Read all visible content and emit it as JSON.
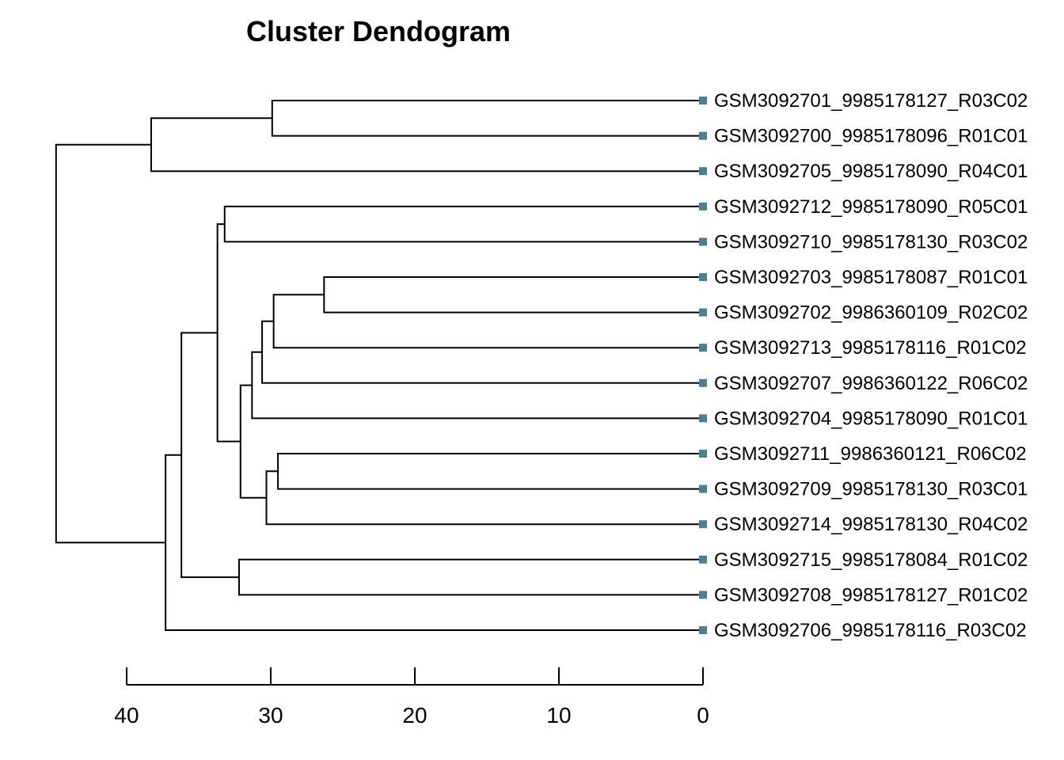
{
  "chart_data": {
    "type": "dendrogram",
    "title": "Cluster Dendogram",
    "xlim": [
      40,
      0
    ],
    "ticks": [
      40,
      30,
      20,
      10,
      0
    ],
    "leaves": [
      "GSM3092701_9985178127_R03C02",
      "GSM3092700_9985178096_R01C01",
      "GSM3092705_9985178090_R04C01",
      "GSM3092712_9985178090_R05C01",
      "GSM3092710_9985178130_R03C02",
      "GSM3092703_9985178087_R01C01",
      "GSM3092702_9986360109_R02C02",
      "GSM3092713_9985178116_R01C02",
      "GSM3092707_9986360122_R06C02",
      "GSM3092704_9985178090_R01C01",
      "GSM3092711_9986360121_R06C02",
      "GSM3092709_9985178130_R03C01",
      "GSM3092714_9985178130_R04C02",
      "GSM3092715_9985178084_R01C02",
      "GSM3092708_9985178127_R01C02",
      "GSM3092706_9985178116_R03C02"
    ],
    "merges": [
      {
        "id": "m1",
        "left": 0,
        "right": 1,
        "height": 29.9
      },
      {
        "id": "m2",
        "left": "m1",
        "right": 2,
        "height": 38.3
      },
      {
        "id": "m3",
        "left": 3,
        "right": 4,
        "height": 33.2
      },
      {
        "id": "m4",
        "left": 5,
        "right": 6,
        "height": 26.3
      },
      {
        "id": "m5",
        "left": "m4",
        "right": 7,
        "height": 29.8
      },
      {
        "id": "m6",
        "left": "m5",
        "right": 8,
        "height": 30.6
      },
      {
        "id": "m7",
        "left": "m6",
        "right": 9,
        "height": 31.3
      },
      {
        "id": "m8",
        "left": 10,
        "right": 11,
        "height": 29.5
      },
      {
        "id": "m9",
        "left": "m8",
        "right": 12,
        "height": 30.3
      },
      {
        "id": "m10",
        "left": "m7",
        "right": "m9",
        "height": 32.1
      },
      {
        "id": "m11",
        "left": "m3",
        "right": "m10",
        "height": 33.7
      },
      {
        "id": "m12",
        "left": 13,
        "right": 14,
        "height": 32.2
      },
      {
        "id": "m13",
        "left": "m11",
        "right": "m12",
        "height": 36.2
      },
      {
        "id": "m14",
        "left": "m13",
        "right": 15,
        "height": 37.3
      },
      {
        "id": "m15",
        "left": "m2",
        "right": "m14",
        "height": 44.9
      }
    ],
    "leaf_marker_color": "#4a7f95",
    "branch_color": "#000000"
  }
}
